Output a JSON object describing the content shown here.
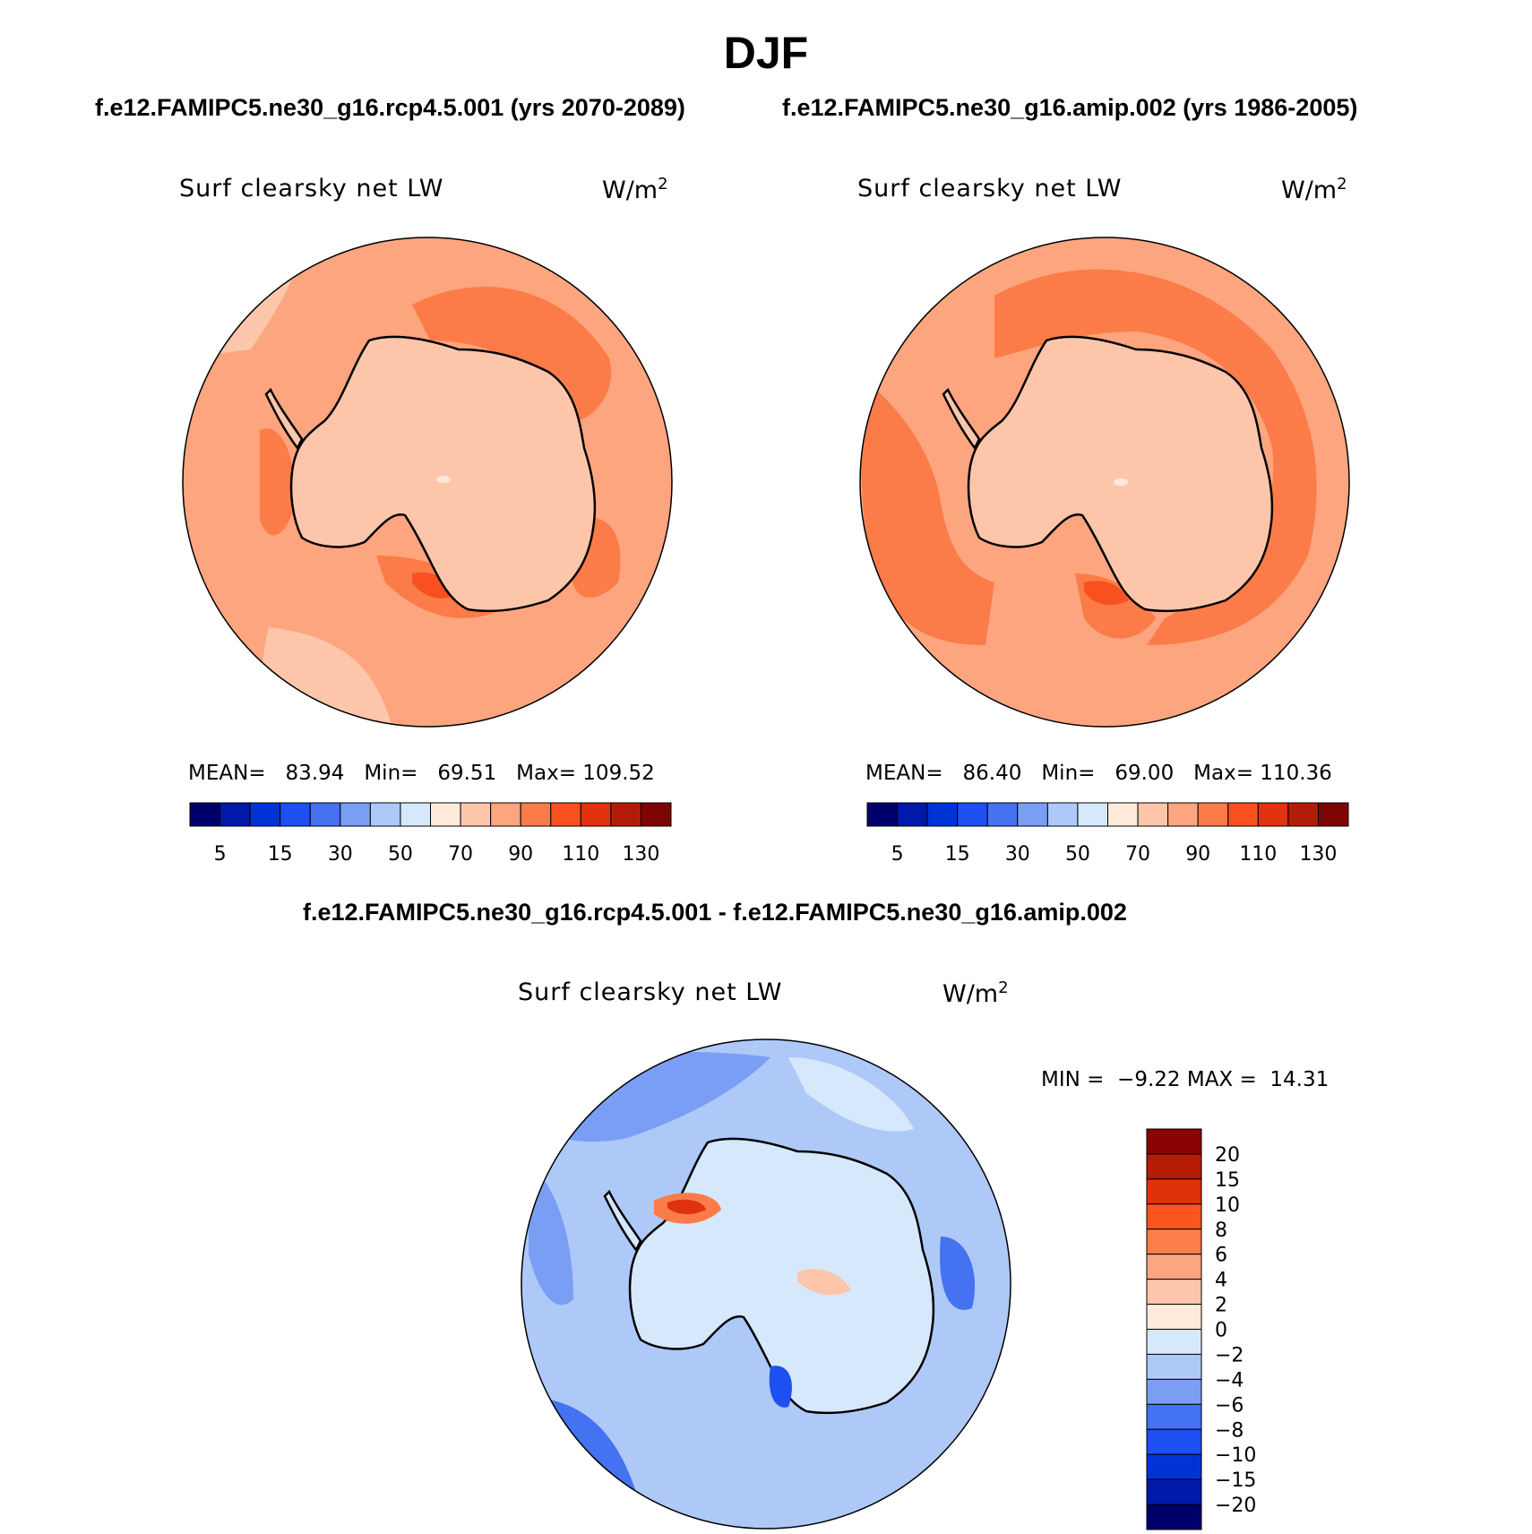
{
  "title": "DJF",
  "panels": [
    {
      "caption": "f.e12.FAMIPC5.ne30_g16.rcp4.5.001 (yrs 2070-2089)",
      "variable": "Surf clearsky net LW",
      "units_base": "W/m",
      "units_exp": "2",
      "stats": {
        "mean_label": "MEAN=",
        "mean": "83.94",
        "min_label": "Min=",
        "min": "69.51",
        "max_label": "Max=",
        "max": "109.52"
      }
    },
    {
      "caption": "f.e12.FAMIPC5.ne30_g16.amip.002 (yrs 1986-2005)",
      "variable": "Surf clearsky net LW",
      "units_base": "W/m",
      "units_exp": "2",
      "stats": {
        "mean_label": "MEAN=",
        "mean": "86.40",
        "min_label": "Min=",
        "min": "69.00",
        "max_label": "Max=",
        "max": "110.36"
      }
    }
  ],
  "diff_panel": {
    "caption": "f.e12.FAMIPC5.ne30_g16.rcp4.5.001 - f.e12.FAMIPC5.ne30_g16.amip.002",
    "variable": "Surf clearsky net LW",
    "units_base": "W/m",
    "units_exp": "2",
    "minmax": {
      "min_label": "MIN =",
      "min": "−9.22",
      "max_label": "MAX =",
      "max": "14.31"
    }
  },
  "colorbar_abs": {
    "colors": [
      "#00006b",
      "#0019a8",
      "#0033d6",
      "#1e4ff0",
      "#4472f0",
      "#7a9ef4",
      "#aec8f8",
      "#d6e8fb",
      "#feeadb",
      "#fdc6ab",
      "#fca57f",
      "#fb7c48",
      "#f8501f",
      "#e0320d",
      "#b31d08",
      "#7d0604"
    ],
    "labels": [
      "5",
      "15",
      "30",
      "50",
      "70",
      "90",
      "110",
      "130"
    ]
  },
  "colorbar_diff": {
    "colors": [
      "#8a0303",
      "#b51c05",
      "#dd3208",
      "#fb5620",
      "#fb7e48",
      "#fca57f",
      "#fdc6ab",
      "#feeadb",
      "#d6e8fb",
      "#aec8f8",
      "#7a9ef4",
      "#4472f0",
      "#1e4ff0",
      "#0033d6",
      "#0019a8",
      "#00006b"
    ],
    "labels": [
      "20",
      "15",
      "10",
      "8",
      "6",
      "4",
      "2",
      "0",
      "−2",
      "−4",
      "−6",
      "−8",
      "−10",
      "−15",
      "−20"
    ]
  }
}
